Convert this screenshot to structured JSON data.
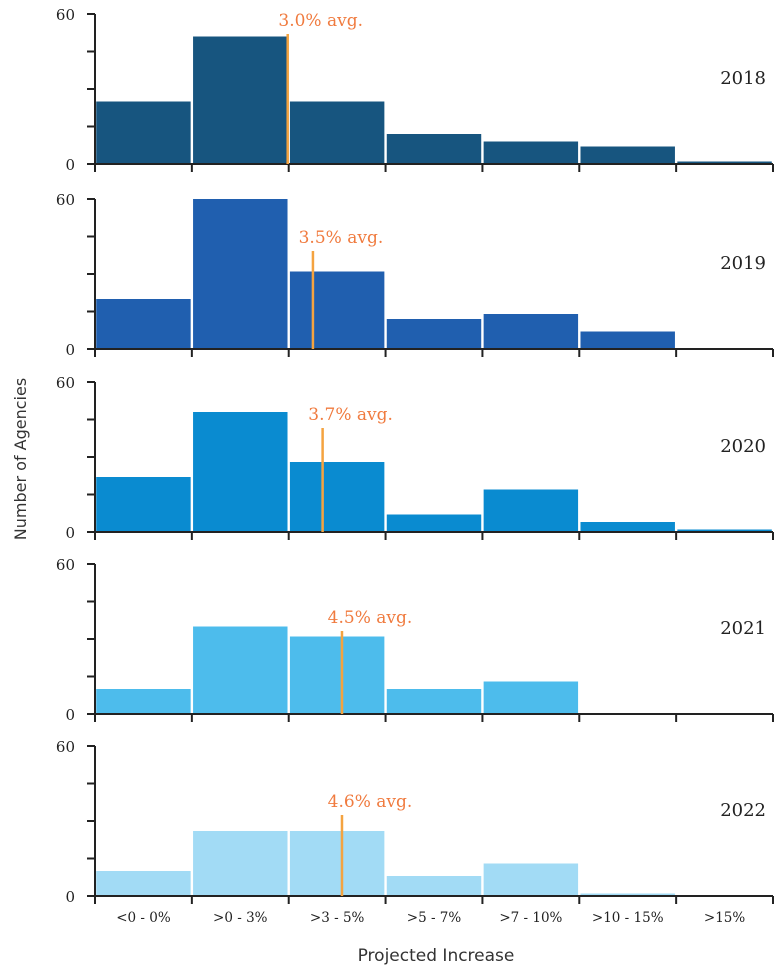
{
  "chart_data": {
    "type": "bar",
    "ylabel": "Number of Agencies",
    "xlabel": "Projected Increase",
    "categories": [
      "<0 - 0%",
      ">0 - 3%",
      ">3 - 5%",
      ">5 - 7%",
      ">7 - 10%",
      ">10 - 15%",
      ">15%"
    ],
    "ylim": [
      0,
      60
    ],
    "yticks": [
      "0",
      "60"
    ],
    "avg_line_color": "#F4A340",
    "avg_label_color": "#F07B3F",
    "panels": [
      {
        "year": "2018",
        "values": [
          25,
          51,
          25,
          12,
          9,
          7,
          1
        ],
        "avg_label": "3.0% avg.",
        "avg_x": 2.0,
        "color": "#17557F"
      },
      {
        "year": "2019",
        "values": [
          20,
          60,
          31,
          12,
          14,
          7,
          0
        ],
        "avg_label": "3.5% avg.",
        "avg_x": 2.25,
        "color": "#205FAF"
      },
      {
        "year": "2020",
        "values": [
          22,
          48,
          28,
          7,
          17,
          4,
          1
        ],
        "avg_label": "3.7% avg.",
        "avg_x": 2.35,
        "color": "#0A8BD0"
      },
      {
        "year": "2021",
        "values": [
          10,
          35,
          31,
          10,
          13,
          0,
          0
        ],
        "avg_label": "4.5% avg.",
        "avg_x": 2.55,
        "color": "#4DBCEC"
      },
      {
        "year": "2022",
        "values": [
          10,
          26,
          26,
          8,
          13,
          1,
          0
        ],
        "avg_label": "4.6% avg.",
        "avg_x": 2.55,
        "color": "#A2DBF5"
      }
    ]
  }
}
